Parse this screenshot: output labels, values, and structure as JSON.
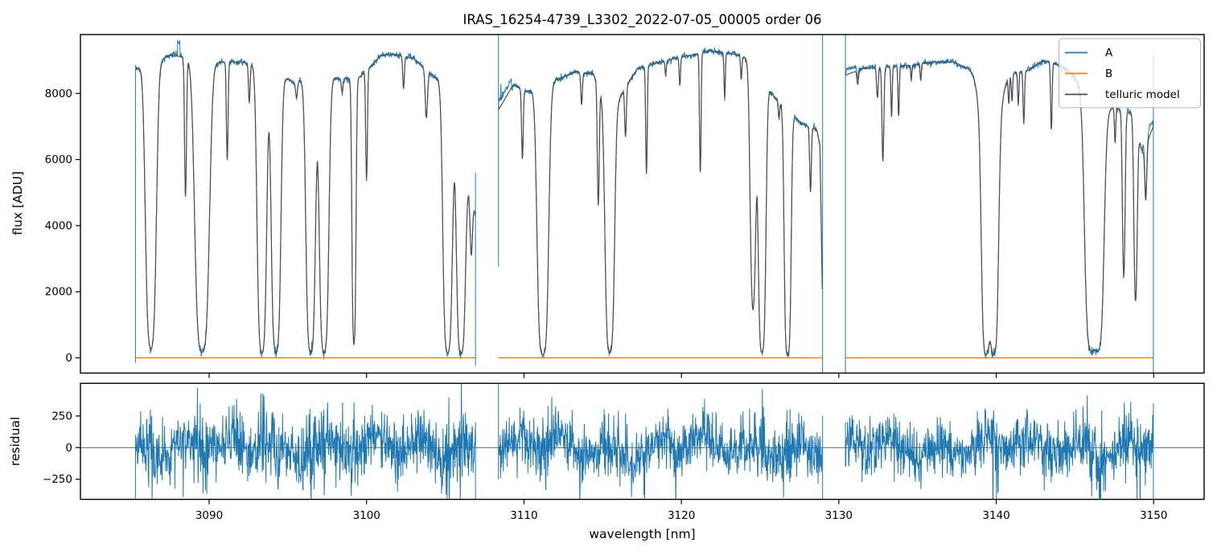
{
  "title": "IRAS_16254-4739_L3302_2022-07-05_00005  order 06",
  "colors": {
    "series_a": "#1f77b4",
    "series_b": "#ff7f0e",
    "model": "#4d4d4d",
    "frame": "#000000",
    "zero_line": "#555555",
    "legend_border": "#b3b3b3"
  },
  "legend": {
    "items": [
      {
        "label": "A",
        "color": "#1f77b4"
      },
      {
        "label": "B",
        "color": "#ff7f0e"
      },
      {
        "label": "telluric model",
        "color": "#4d4d4d"
      }
    ]
  },
  "top_axis": {
    "ylabel": "flux [ADU]",
    "yticks": [
      0,
      2000,
      4000,
      6000,
      8000
    ],
    "ylim": [
      -460,
      9780
    ]
  },
  "bottom_axis": {
    "ylabel": "residual",
    "yticks": [
      -250,
      0,
      250
    ],
    "ylim": [
      -408,
      507
    ],
    "xlabel": "wavelength [nm]",
    "xticks": [
      3090,
      3100,
      3110,
      3120,
      3130,
      3140,
      3150
    ]
  },
  "xlim": [
    3081.8,
    3153.2
  ],
  "chart_data": {
    "type": "line",
    "title": "IRAS_16254-4739_L3302_2022-07-05_00005  order 06",
    "xlabel": "wavelength [nm]",
    "ylabel_top": "flux [ADU]",
    "ylabel_bottom": "residual",
    "series_names": [
      "A",
      "B",
      "telluric model",
      "residual"
    ],
    "b_level": 0,
    "sample_step_nm": 0.022,
    "noise": {
      "a_sigma": 45,
      "a_core_extra": 28,
      "a_wiggle": 25,
      "residual_sigma": 108,
      "residual_core_scale": 0.7,
      "seed": 7
    },
    "a_excess_regions": [
      [
        3088.0,
        3088.14,
        420
      ],
      [
        3108.4,
        3109.2,
        260
      ],
      [
        3130.45,
        3131.3,
        170
      ],
      [
        3149.3,
        3149.95,
        250
      ]
    ],
    "edge_spikes_flux": [
      [
        3085.32,
        -150,
        8750
      ],
      [
        3106.92,
        -250,
        5600
      ],
      [
        3108.38,
        2760,
        9780
      ],
      [
        3128.97,
        -460,
        9780
      ],
      [
        3130.42,
        -460,
        9780
      ],
      [
        3149.98,
        -460,
        9200
      ]
    ],
    "edge_spikes_residual": [
      [
        3085.32,
        -600,
        100
      ],
      [
        3106.92,
        -600,
        200
      ],
      [
        3108.38,
        -250,
        600
      ],
      [
        3128.97,
        -600,
        250
      ],
      [
        3130.42,
        -150,
        200
      ],
      [
        3149.98,
        -600,
        350
      ]
    ],
    "segments": [
      {
        "range": [
          3085.32,
          3106.92
        ],
        "continuum": [
          [
            3085.32,
            8750
          ],
          [
            3086.0,
            8820
          ],
          [
            3087.5,
            9150
          ],
          [
            3088.2,
            9120
          ],
          [
            3089.0,
            9050
          ],
          [
            3090.6,
            8950
          ],
          [
            3092.1,
            8950
          ],
          [
            3093.0,
            8850
          ],
          [
            3095.4,
            8350
          ],
          [
            3096.0,
            8400
          ],
          [
            3098.4,
            8450
          ],
          [
            3099.6,
            8500
          ],
          [
            3100.9,
            9150
          ],
          [
            3101.8,
            9180
          ],
          [
            3103.0,
            9050
          ],
          [
            3104.3,
            8500
          ],
          [
            3105.0,
            8300
          ],
          [
            3106.3,
            5600
          ],
          [
            3106.92,
            4300
          ]
        ],
        "lines": [
          [
            3086.3,
            3.5,
            0.2
          ],
          [
            3088.5,
            0.62,
            0.055
          ],
          [
            3089.55,
            4.0,
            0.26
          ],
          [
            3091.15,
            0.4,
            0.05
          ],
          [
            3092.55,
            0.14,
            0.05
          ],
          [
            3093.35,
            4.0,
            0.17
          ],
          [
            3094.25,
            4.0,
            0.17
          ],
          [
            3095.55,
            0.06,
            0.06
          ],
          [
            3096.45,
            4.0,
            0.17
          ],
          [
            3097.3,
            4.0,
            0.17
          ],
          [
            3098.45,
            0.05,
            0.05
          ],
          [
            3099.2,
            3.0,
            0.08
          ],
          [
            3100.0,
            0.48,
            0.05
          ],
          [
            3102.35,
            0.11,
            0.05
          ],
          [
            3103.8,
            0.18,
            0.07
          ],
          [
            3105.15,
            4.0,
            0.17
          ],
          [
            3106.0,
            4.0,
            0.16
          ],
          [
            3106.65,
            0.45,
            0.07
          ]
        ]
      },
      {
        "range": [
          3108.38,
          3128.97
        ],
        "continuum": [
          [
            3108.38,
            7500
          ],
          [
            3109.3,
            8250
          ],
          [
            3110.2,
            8050
          ],
          [
            3112.0,
            8400
          ],
          [
            3113.3,
            8650
          ],
          [
            3114.4,
            8600
          ],
          [
            3115.0,
            7900
          ],
          [
            3116.0,
            7800
          ],
          [
            3117.2,
            8750
          ],
          [
            3118.6,
            8950
          ],
          [
            3120.0,
            9100
          ],
          [
            3121.8,
            9280
          ],
          [
            3123.0,
            9230
          ],
          [
            3124.3,
            9050
          ],
          [
            3125.9,
            7900
          ],
          [
            3127.6,
            7100
          ],
          [
            3128.6,
            6900
          ],
          [
            3128.8,
            6400
          ],
          [
            3128.97,
            1500
          ]
        ],
        "lines": [
          [
            3109.9,
            0.3,
            0.05
          ],
          [
            3111.2,
            4.5,
            0.2
          ],
          [
            3113.66,
            0.12,
            0.05
          ],
          [
            3114.72,
            0.58,
            0.055
          ],
          [
            3115.45,
            4.0,
            0.17
          ],
          [
            3116.45,
            0.2,
            0.05
          ],
          [
            3117.78,
            0.46,
            0.045
          ],
          [
            3119.0,
            0.05,
            0.04
          ],
          [
            3119.9,
            0.1,
            0.04
          ],
          [
            3121.2,
            0.5,
            0.045
          ],
          [
            3122.75,
            0.16,
            0.04
          ],
          [
            3123.8,
            0.08,
            0.04
          ],
          [
            3124.55,
            1.8,
            0.13
          ],
          [
            3125.12,
            4.0,
            0.14
          ],
          [
            3126.2,
            0.07,
            0.04
          ],
          [
            3126.75,
            4.5,
            0.12
          ],
          [
            3128.2,
            0.33,
            0.05
          ]
        ]
      },
      {
        "range": [
          3130.42,
          3149.98
        ],
        "continuum": [
          [
            3130.42,
            8550
          ],
          [
            3131.5,
            8750
          ],
          [
            3133.0,
            8800
          ],
          [
            3134.5,
            8850
          ],
          [
            3136.0,
            8950
          ],
          [
            3137.3,
            8950
          ],
          [
            3138.0,
            8800
          ],
          [
            3140.6,
            8600
          ],
          [
            3142.0,
            8700
          ],
          [
            3143.0,
            9000
          ],
          [
            3144.3,
            8800
          ],
          [
            3145.0,
            8500
          ],
          [
            3147.4,
            7600
          ],
          [
            3148.6,
            7400
          ],
          [
            3149.3,
            6200
          ],
          [
            3149.98,
            7000
          ]
        ],
        "lines": [
          [
            3131.2,
            0.05,
            0.05
          ],
          [
            3132.45,
            0.11,
            0.05
          ],
          [
            3132.8,
            0.39,
            0.055
          ],
          [
            3133.35,
            0.19,
            0.04
          ],
          [
            3133.8,
            0.19,
            0.04
          ],
          [
            3134.6,
            0.05,
            0.035
          ],
          [
            3135.2,
            0.06,
            0.035
          ],
          [
            3139.35,
            4.0,
            0.16
          ],
          [
            3139.85,
            4.0,
            0.16
          ],
          [
            3139.6,
            0.5,
            0.45
          ],
          [
            3140.8,
            0.1,
            0.04
          ],
          [
            3141.0,
            0.1,
            0.04
          ],
          [
            3141.4,
            0.12,
            0.04
          ],
          [
            3141.75,
            0.2,
            0.045
          ],
          [
            3143.5,
            0.26,
            0.045
          ],
          [
            3146.0,
            3.2,
            0.22
          ],
          [
            3146.5,
            3.0,
            0.2
          ],
          [
            3146.25,
            0.45,
            0.4
          ],
          [
            3147.55,
            0.15,
            0.04
          ],
          [
            3148.1,
            1.1,
            0.07
          ],
          [
            3148.85,
            1.4,
            0.08
          ],
          [
            3149.5,
            0.3,
            0.06
          ]
        ]
      }
    ]
  }
}
